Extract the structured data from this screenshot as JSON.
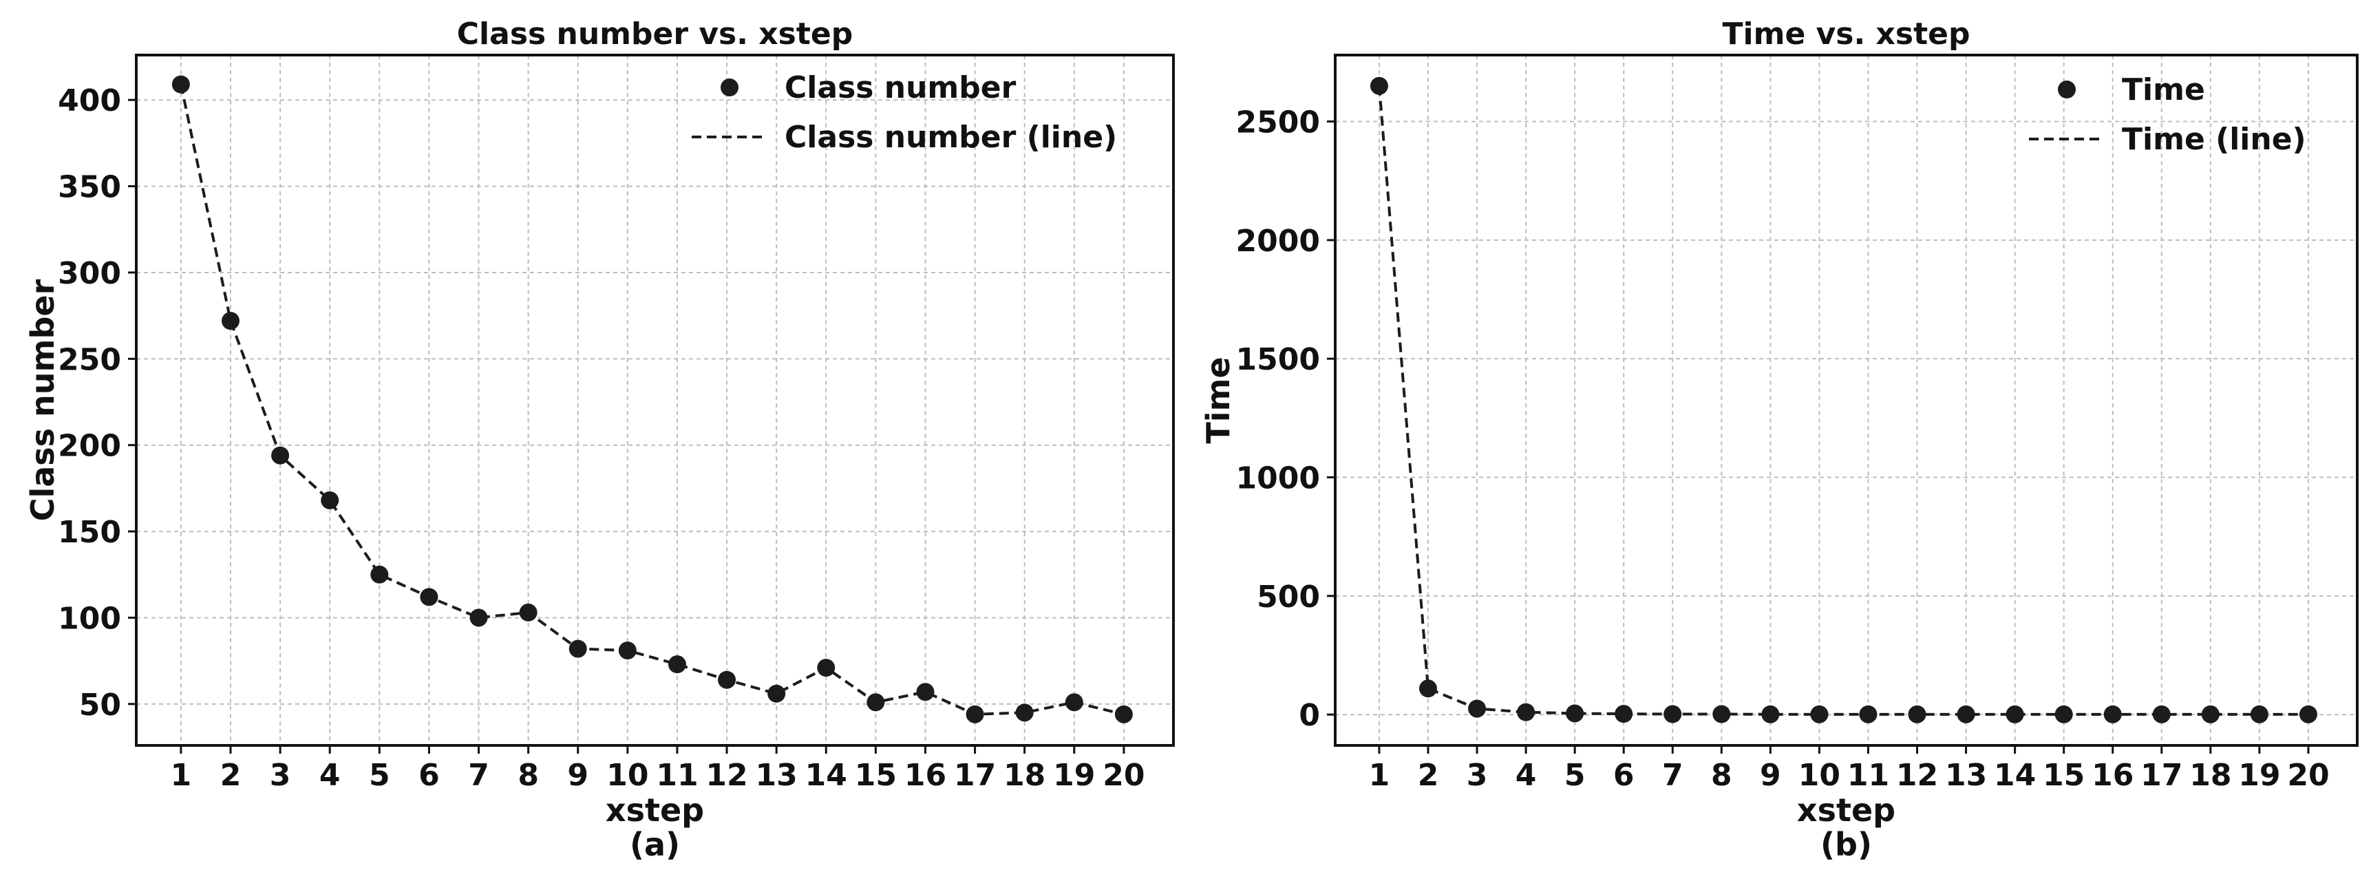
{
  "chart_data": [
    {
      "type": "scatter",
      "title": "Class number vs. xstep",
      "xlabel": "xstep",
      "ylabel": "Class number",
      "caption": "(a)",
      "x": [
        1,
        2,
        3,
        4,
        5,
        6,
        7,
        8,
        9,
        10,
        11,
        12,
        13,
        14,
        15,
        16,
        17,
        18,
        19,
        20
      ],
      "series": [
        {
          "name": "Class number",
          "legend_line": "Class number (line)",
          "values": [
            409,
            272,
            194,
            168,
            125,
            112,
            100,
            103,
            82,
            81,
            73,
            64,
            56,
            71,
            51,
            57,
            44,
            45,
            51,
            44
          ]
        }
      ],
      "xlim": [
        0.1,
        21.0
      ],
      "ylim": [
        26,
        426
      ],
      "yticks": [
        50,
        100,
        150,
        200,
        250,
        300,
        350,
        400
      ],
      "grid": true,
      "legend": "top-right",
      "marker_color": "#1c1c1c",
      "line_color": "#1c1c1c"
    },
    {
      "type": "scatter",
      "title": "Time vs. xstep",
      "xlabel": "xstep",
      "ylabel": "Time",
      "caption": "(b)",
      "x": [
        1,
        2,
        3,
        4,
        5,
        6,
        7,
        8,
        9,
        10,
        11,
        12,
        13,
        14,
        15,
        16,
        17,
        18,
        19,
        20
      ],
      "series": [
        {
          "name": "Time",
          "legend_line": "Time (line)",
          "values": [
            2650,
            110,
            25,
            10,
            5,
            3,
            2,
            2,
            1,
            1,
            1,
            1,
            1,
            1,
            1,
            1,
            1,
            1,
            1,
            1
          ]
        }
      ],
      "xlim": [
        0.1,
        21.0
      ],
      "ylim": [
        -130,
        2780
      ],
      "yticks": [
        0,
        500,
        1000,
        1500,
        2000,
        2500
      ],
      "grid": true,
      "legend": "top-right",
      "marker_color": "#1c1c1c",
      "line_color": "#1c1c1c"
    }
  ]
}
